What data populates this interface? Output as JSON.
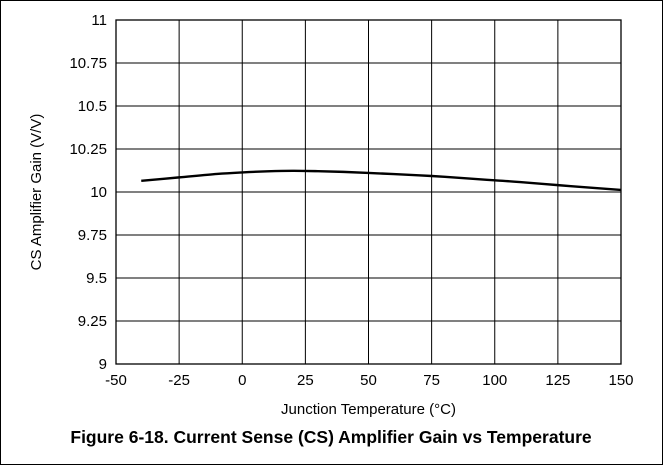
{
  "chart_data": {
    "type": "line",
    "title": "Figure 6-18. Current Sense (CS) Amplifier Gain vs Temperature",
    "xlabel": "Junction Temperature (°C)",
    "ylabel": "CS Amplifier Gain (V/V)",
    "xlim": [
      -50,
      150
    ],
    "ylim": [
      9,
      11
    ],
    "xticks": [
      -50,
      -25,
      0,
      25,
      50,
      75,
      100,
      125,
      150
    ],
    "yticks": [
      9,
      9.25,
      9.5,
      9.75,
      10,
      10.25,
      10.5,
      10.75,
      11
    ],
    "xtick_labels": [
      "-50",
      "-25",
      "0",
      "25",
      "50",
      "75",
      "100",
      "125",
      "150"
    ],
    "ytick_labels": [
      "9",
      "9.25",
      "9.5",
      "9.75",
      "10",
      "10.25",
      "10.5",
      "10.75",
      "11"
    ],
    "grid": true,
    "series": [
      {
        "x": [
          -40,
          -25,
          -10,
          0,
          10,
          20,
          30,
          40,
          50,
          60,
          75,
          90,
          100,
          110,
          125,
          140,
          150
        ],
        "y": [
          10.065,
          10.085,
          10.105,
          10.114,
          10.12,
          10.123,
          10.121,
          10.117,
          10.111,
          10.104,
          10.093,
          10.078,
          10.068,
          10.058,
          10.04,
          10.023,
          10.012
        ]
      }
    ]
  }
}
